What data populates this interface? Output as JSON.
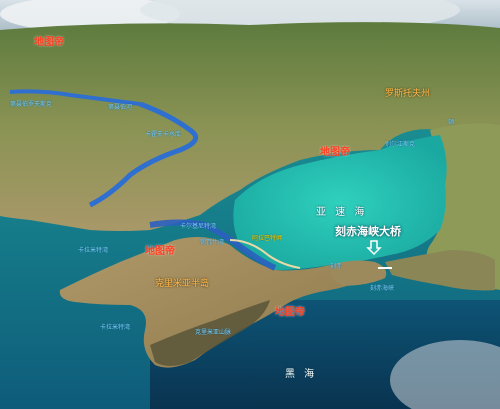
{
  "watermarks": [
    "地图帝",
    "地图帝",
    "地图帝",
    "地图帝"
  ],
  "regions": {
    "region_upper_right": "罗斯托夫州",
    "peninsula": "克里米亚半岛"
  },
  "places": {
    "dnieper_lower": "第聂伯河",
    "kakhovka": "卡霍夫卡水库",
    "west_upper": "第聂伯罗夫斯克",
    "north_coast": "别尔江斯克",
    "east_right": "顿",
    "karkinit": "卡尔基尼特湾",
    "west_coast": "卡拉米特湾",
    "sivash": "锡瓦什湾",
    "arabat": "阿拉巴特岬",
    "kerch": "刻赤",
    "kerch_strait": "刻赤海峡",
    "south_mountains": "克里米亚山脉",
    "south_west": "卡拉米特湾"
  },
  "seas": {
    "azov": "亚 速 海",
    "black": "黑  海"
  },
  "annotation": {
    "bridge_label": "刻赤海峡大桥"
  },
  "colors": {
    "watermark": "#ff3d1f",
    "region_label": "#ffb74a",
    "place_label": "#7fd4ff",
    "bridge_arrow": "#ffffff"
  },
  "icons": {
    "bridge_marker": "down-arrow-icon"
  }
}
